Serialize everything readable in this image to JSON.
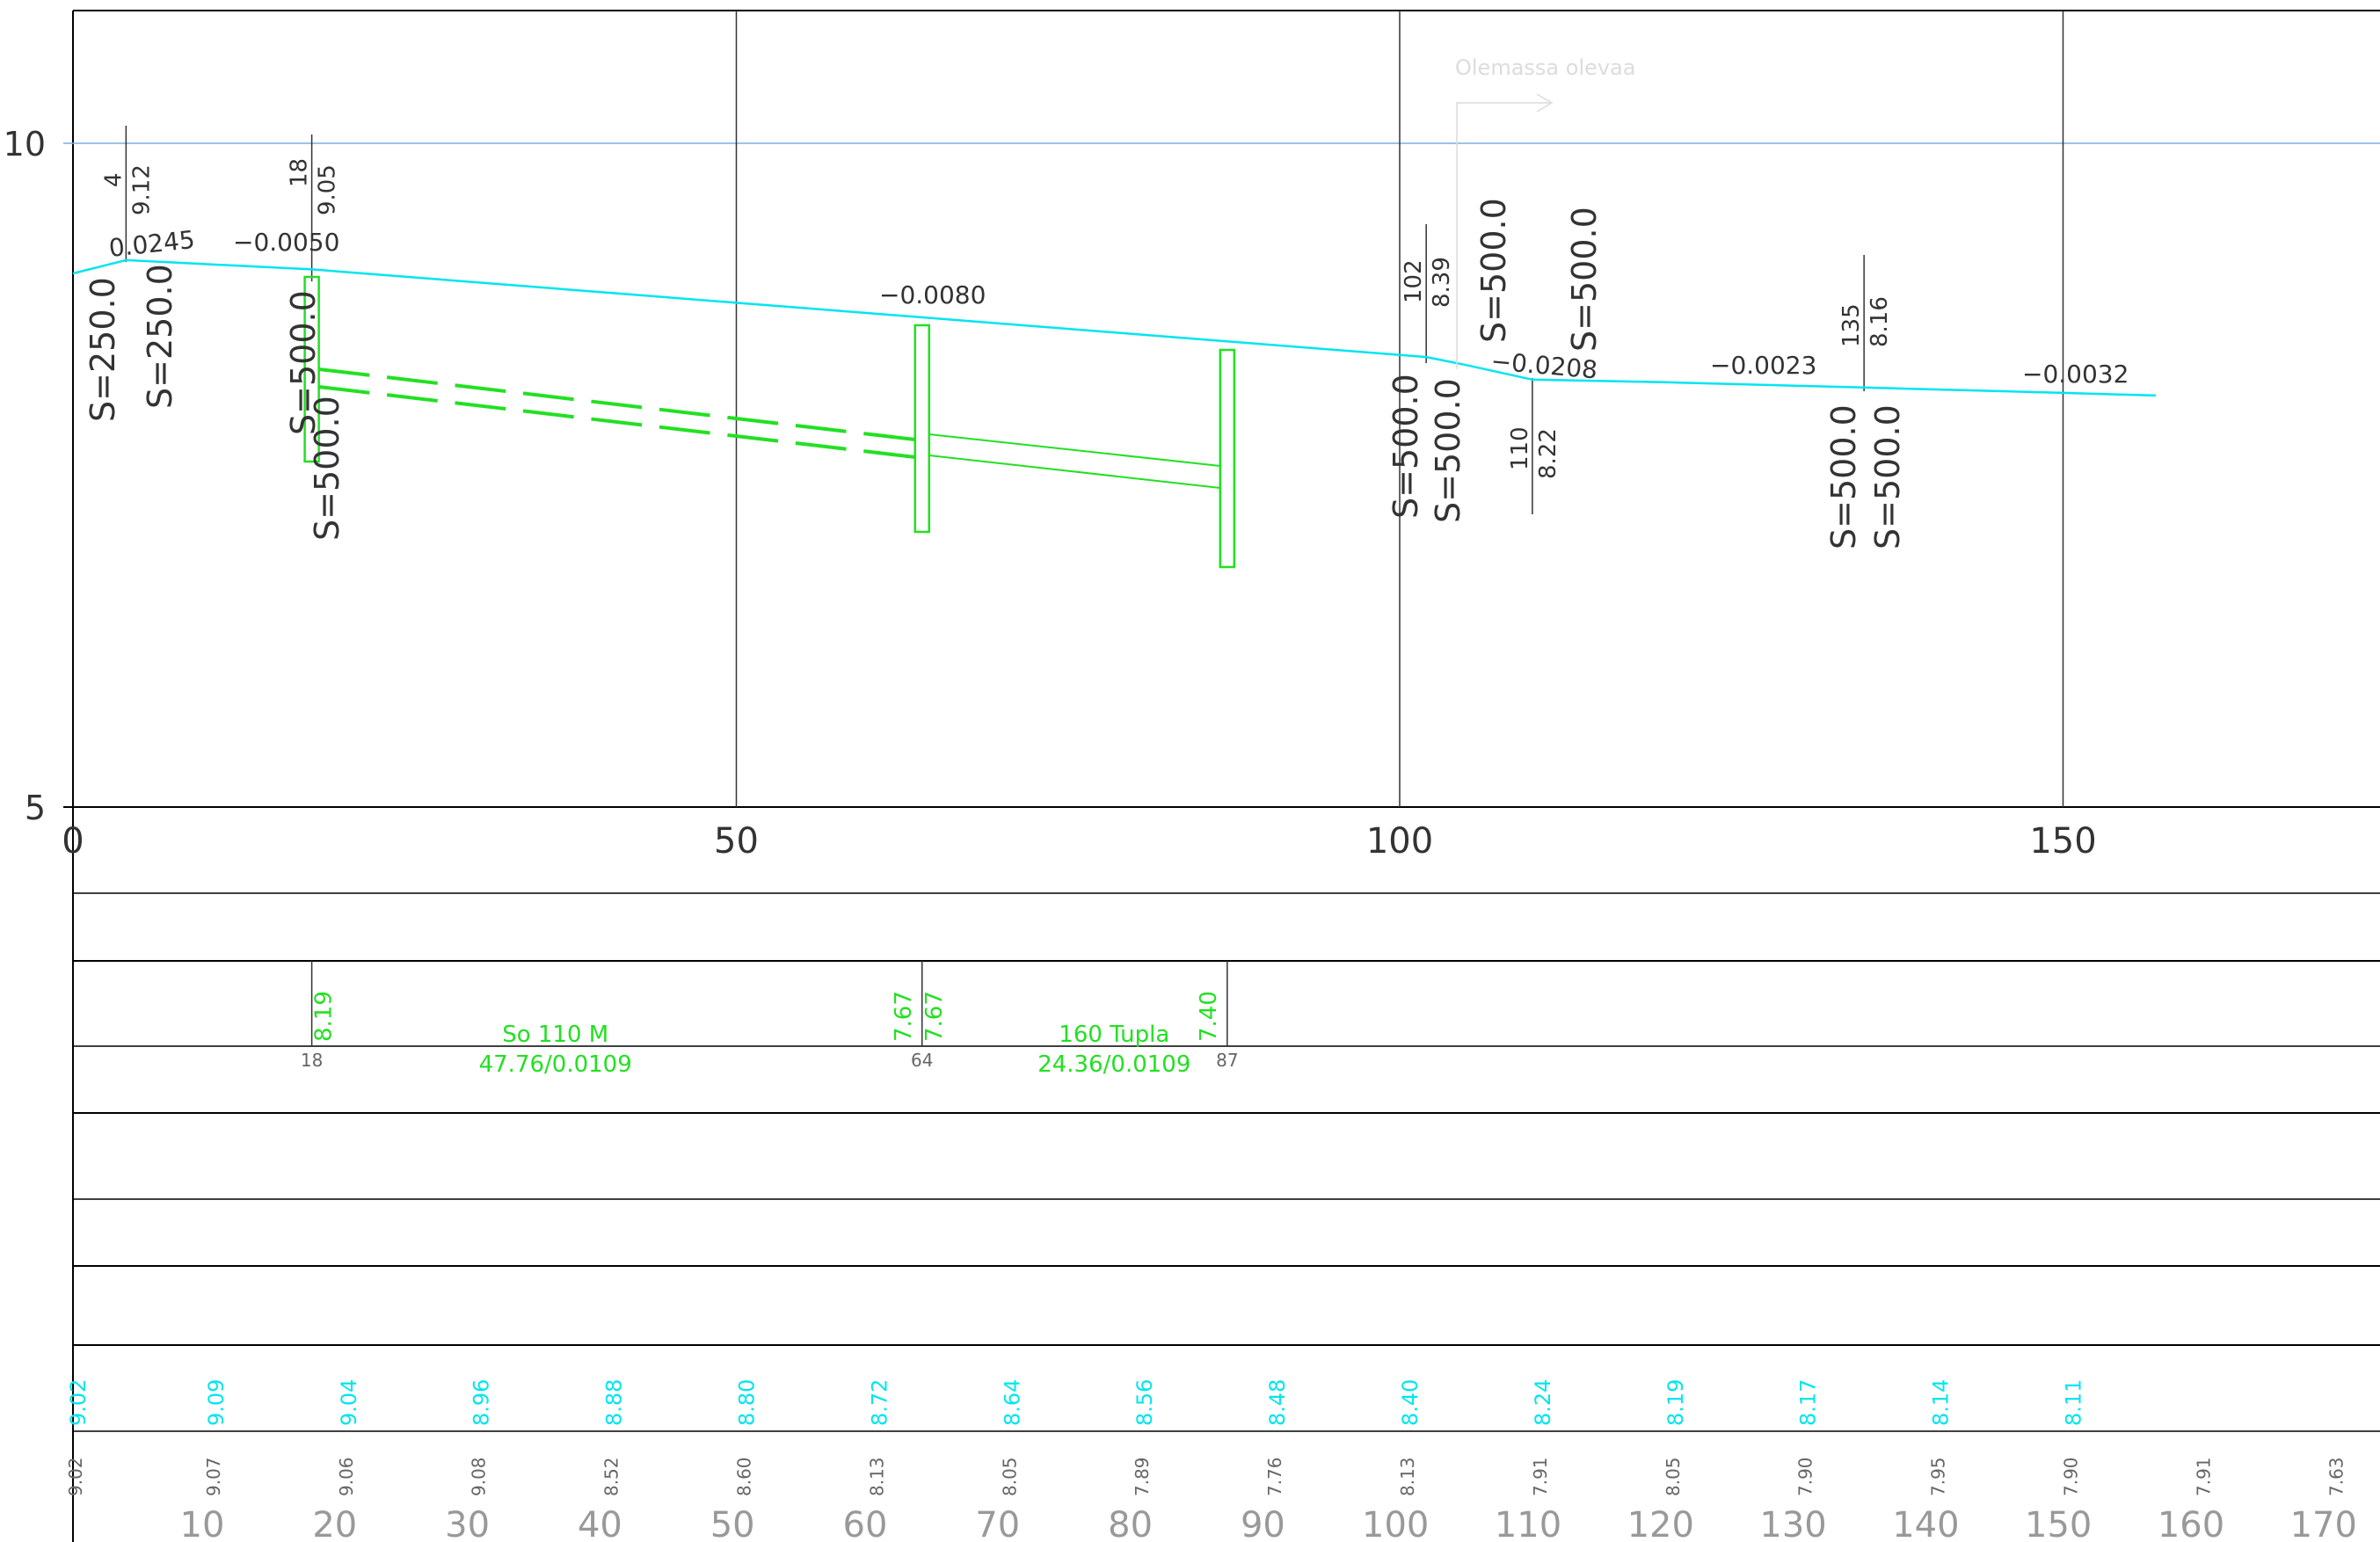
{
  "axis": {
    "y_ticks": [
      {
        "value": 10,
        "label": "10"
      },
      {
        "value": 5,
        "label": "5"
      }
    ],
    "x_ticks": [
      {
        "value": 0,
        "label": "0"
      },
      {
        "value": 50,
        "label": "50"
      },
      {
        "value": 100,
        "label": "100"
      },
      {
        "value": 150,
        "label": "150"
      }
    ],
    "chainage_labels": [
      "10",
      "20",
      "30",
      "40",
      "50",
      "60",
      "70",
      "80",
      "90",
      "100",
      "110",
      "120",
      "130",
      "140",
      "150",
      "160",
      "170"
    ]
  },
  "ground_profile": {
    "color": "#00e5f0",
    "points": [
      [
        0,
        9.02
      ],
      [
        4,
        9.12
      ],
      [
        8,
        9.1
      ],
      [
        18,
        9.05
      ],
      [
        102,
        8.39
      ],
      [
        105,
        8.33
      ],
      [
        110,
        8.22
      ],
      [
        120,
        8.2
      ],
      [
        135,
        8.16
      ],
      [
        150,
        8.12
      ],
      [
        157,
        8.1
      ]
    ]
  },
  "existing_note": "Olemassa olevaa",
  "vertical_points": [
    {
      "sta": 4,
      "sta_label": "4",
      "elev_label": "9.12"
    },
    {
      "sta": 18,
      "sta_label": "18",
      "elev_label": "9.05"
    },
    {
      "sta": 102,
      "sta_label": "102",
      "elev_label": "8.39"
    },
    {
      "sta": 110,
      "sta_label": "110",
      "elev_label": "8.22"
    },
    {
      "sta": 135,
      "sta_label": "135",
      "elev_label": "8.16"
    }
  ],
  "slopes": [
    {
      "sta": 7,
      "label": "0.0245"
    },
    {
      "sta": 16,
      "label": "−0.0050"
    },
    {
      "sta": 68,
      "label": "−0.0080"
    },
    {
      "sta": 109,
      "label": "−0.0208"
    },
    {
      "sta": 127,
      "label": "−0.0023"
    },
    {
      "sta": 150,
      "label": "−0.0032"
    }
  ],
  "curve_radii": [
    {
      "sta": 1,
      "label": "S=250.0"
    },
    {
      "sta": 6,
      "label": "S=250.0"
    },
    {
      "sta": 17,
      "label": "S=500.0"
    },
    {
      "sta": 19,
      "label": "S=500.0"
    },
    {
      "sta": 101,
      "label": "S=500.0"
    },
    {
      "sta": 104,
      "label": "S=500.0"
    },
    {
      "sta": 107,
      "label": "S=500.0"
    },
    {
      "sta": 114,
      "label": "S=500.0"
    },
    {
      "sta": 133,
      "label": "S=500.0"
    },
    {
      "sta": 136,
      "label": "S=500.0"
    }
  ],
  "pipe": {
    "color": "#22e022",
    "wells": [
      {
        "sta": 18
      },
      {
        "sta": 64
      },
      {
        "sta": 87
      }
    ],
    "segments": [
      {
        "from": 18,
        "to": 64,
        "line1": "So 110 M",
        "line2": "47.76/0.0109"
      },
      {
        "from": 64,
        "to": 87,
        "line1": "160 Tupla",
        "line2": "24.36/0.0109"
      }
    ],
    "band_levels": [
      {
        "sta": 18,
        "label": "8.19"
      },
      {
        "sta": 64,
        "label": "7.67"
      },
      {
        "sta": 64,
        "label": "7.67"
      },
      {
        "sta": 87,
        "label": "7.40"
      }
    ],
    "band_stations": [
      {
        "sta": 18,
        "label": "18"
      },
      {
        "sta": 64,
        "label": "64"
      },
      {
        "sta": 87,
        "label": "87"
      }
    ]
  },
  "band_design_elevations": [
    {
      "sta": 0,
      "label": "9.02"
    },
    {
      "sta": 10,
      "label": "9.09"
    },
    {
      "sta": 20,
      "label": "9.04"
    },
    {
      "sta": 30,
      "label": "8.96"
    },
    {
      "sta": 40,
      "label": "8.88"
    },
    {
      "sta": 50,
      "label": "8.80"
    },
    {
      "sta": 60,
      "label": "8.72"
    },
    {
      "sta": 70,
      "label": "8.64"
    },
    {
      "sta": 80,
      "label": "8.56"
    },
    {
      "sta": 90,
      "label": "8.48"
    },
    {
      "sta": 100,
      "label": "8.40"
    },
    {
      "sta": 110,
      "label": "8.24"
    },
    {
      "sta": 120,
      "label": "8.19"
    },
    {
      "sta": 130,
      "label": "8.17"
    },
    {
      "sta": 140,
      "label": "8.14"
    },
    {
      "sta": 150,
      "label": "8.11"
    }
  ],
  "band_ground_elevations": [
    {
      "sta": 0,
      "label": "9.02"
    },
    {
      "sta": 10,
      "label": "9.07"
    },
    {
      "sta": 20,
      "label": "9.06"
    },
    {
      "sta": 30,
      "label": "9.08"
    },
    {
      "sta": 40,
      "label": "8.52"
    },
    {
      "sta": 50,
      "label": "8.60"
    },
    {
      "sta": 60,
      "label": "8.13"
    },
    {
      "sta": 70,
      "label": "8.05"
    },
    {
      "sta": 80,
      "label": "7.89"
    },
    {
      "sta": 90,
      "label": "7.76"
    },
    {
      "sta": 100,
      "label": "8.13"
    },
    {
      "sta": 110,
      "label": "7.91"
    },
    {
      "sta": 120,
      "label": "8.05"
    },
    {
      "sta": 130,
      "label": "7.90"
    },
    {
      "sta": 140,
      "label": "7.95"
    },
    {
      "sta": 150,
      "label": "7.90"
    },
    {
      "sta": 160,
      "label": "7.91"
    },
    {
      "sta": 170,
      "label": "7.63"
    }
  ]
}
